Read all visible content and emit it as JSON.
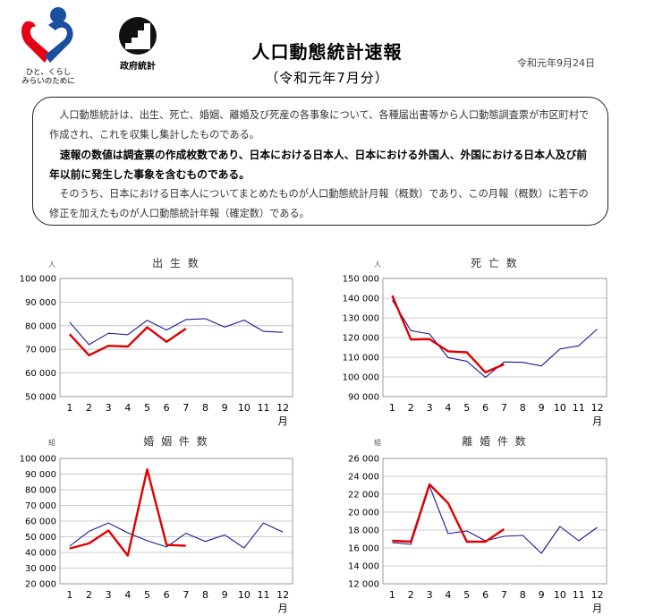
{
  "header": {
    "logo_mhlw_text_line1": "ひと、くらし",
    "logo_mhlw_text_line2": "みらいのために",
    "logo_stat_text": "政府統計",
    "title": "人口動態統計速報",
    "subtitle": "（令和元年7月分）",
    "date": "令和元年9月24日"
  },
  "notice": {
    "p1": "人口動態統計は、出生、死亡、婚姻、離婚及び死産の各事象について、各種届出書等から人口動態調査票が市区町村で作成され、これを収集し集計したものである。",
    "p2": "速報の数値は調査票の作成枚数であり、日本における日本人、日本における外国人、外国における日本人及び前年以前に発生した事象を含むものである。",
    "p3": "そのうち、日本における日本人についてまとめたものが人口動態統計月報（概数）であり、この月報（概数）に若干の修正を加えたものが人口動態統計年報（確定数）である。"
  },
  "colors": {
    "current_year": "#e00000",
    "previous_year": "#1a1a9a",
    "grid": "#bbbbbb"
  },
  "chart_data": [
    {
      "type": "line",
      "title": "出 生 数",
      "ylabel": "人",
      "xlabel": "月",
      "categories": [
        "1",
        "2",
        "3",
        "4",
        "5",
        "6",
        "7",
        "8",
        "9",
        "10",
        "11",
        "12"
      ],
      "ylim": [
        50000,
        100000
      ],
      "yticks": [
        "50 000",
        "60 000",
        "70 000",
        "80 000",
        "90 000",
        "100 000"
      ],
      "series": [
        {
          "values": [
            81500,
            72000,
            76800,
            76200,
            82300,
            78200,
            82600,
            83000,
            79400,
            82400,
            77600,
            77200
          ]
        },
        {
          "values": [
            76400,
            67500,
            71500,
            71200,
            79300,
            73200,
            78800,
            null,
            null,
            null,
            null,
            null
          ]
        }
      ]
    },
    {
      "type": "line",
      "title": "死 亡 数",
      "ylabel": "人",
      "xlabel": "月",
      "categories": [
        "1",
        "2",
        "3",
        "4",
        "5",
        "6",
        "7",
        "8",
        "9",
        "10",
        "11",
        "12"
      ],
      "ylim": [
        90000,
        150000
      ],
      "yticks": [
        "90 000",
        "100 000",
        "110 000",
        "120 000",
        "130 000",
        "140 000",
        "150 000"
      ],
      "series": [
        {
          "values": [
            139000,
            123500,
            121800,
            109800,
            108000,
            99800,
            107600,
            107400,
            105600,
            114200,
            115800,
            124300
          ]
        },
        {
          "values": [
            141300,
            119000,
            119200,
            113000,
            112500,
            102300,
            106400,
            null,
            null,
            null,
            null,
            null
          ]
        }
      ]
    },
    {
      "type": "line",
      "title": "婚 姻 件 数",
      "ylabel": "組",
      "xlabel": "月",
      "categories": [
        "1",
        "2",
        "3",
        "4",
        "5",
        "6",
        "7",
        "8",
        "9",
        "10",
        "11",
        "12"
      ],
      "ylim": [
        20000,
        100000
      ],
      "yticks": [
        "20 000",
        "30 000",
        "40 000",
        "50 000",
        "60 000",
        "70 000",
        "80 000",
        "90 000",
        "100 000"
      ],
      "series": [
        {
          "values": [
            44000,
            53500,
            58800,
            52500,
            47500,
            43500,
            52200,
            47000,
            51200,
            42800,
            58800,
            53000
          ]
        },
        {
          "values": [
            42500,
            45800,
            54000,
            38000,
            93000,
            44800,
            44200,
            null,
            null,
            null,
            null,
            null
          ]
        }
      ]
    },
    {
      "type": "line",
      "title": "離 婚 件 数",
      "ylabel": "組",
      "xlabel": "月",
      "categories": [
        "1",
        "2",
        "3",
        "4",
        "5",
        "6",
        "7",
        "8",
        "9",
        "10",
        "11",
        "12"
      ],
      "ylim": [
        12000,
        26000
      ],
      "yticks": [
        "12 000",
        "14 000",
        "16 000",
        "18 000",
        "20 000",
        "22 000",
        "24 000",
        "26 000"
      ],
      "series": [
        {
          "values": [
            16600,
            16400,
            22900,
            17600,
            17900,
            16800,
            17300,
            17400,
            15400,
            18400,
            16800,
            18300
          ]
        },
        {
          "values": [
            16800,
            16700,
            23100,
            21000,
            16700,
            16700,
            18100,
            null,
            null,
            null,
            null,
            null
          ]
        }
      ]
    }
  ]
}
